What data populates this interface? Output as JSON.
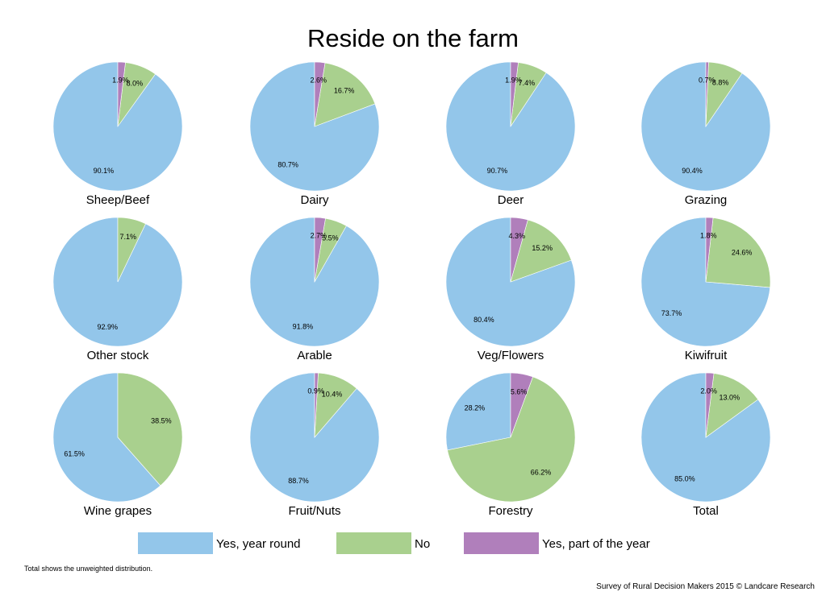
{
  "chart_data": {
    "type": "pie",
    "title": "Reside on the farm",
    "categories": [
      "Yes, year round",
      "No",
      "Yes, part of the year"
    ],
    "colors": [
      "#93c6ea",
      "#a9d08e",
      "#b07fbb"
    ],
    "pies": [
      {
        "name": "Sheep/Beef",
        "values": [
          90.1,
          8.0,
          1.9
        ],
        "labels": [
          "90.1%",
          "8.0%",
          "1.9%"
        ]
      },
      {
        "name": "Dairy",
        "values": [
          80.7,
          16.7,
          2.6
        ],
        "labels": [
          "80.7%",
          "16.7%",
          "2.6%"
        ]
      },
      {
        "name": "Deer",
        "values": [
          90.7,
          7.4,
          1.9
        ],
        "labels": [
          "90.7%",
          "7.4%",
          "1.9%"
        ]
      },
      {
        "name": "Grazing",
        "values": [
          90.4,
          8.8,
          0.7
        ],
        "labels": [
          "90.4%",
          "8.8%",
          "0.7%"
        ]
      },
      {
        "name": "Other stock",
        "values": [
          92.9,
          7.1,
          0
        ],
        "labels": [
          "92.9%",
          "7.1%",
          ""
        ]
      },
      {
        "name": "Arable",
        "values": [
          91.8,
          5.5,
          2.7
        ],
        "labels": [
          "91.8%",
          "5.5%",
          "2.7%"
        ]
      },
      {
        "name": "Veg/Flowers",
        "values": [
          80.4,
          15.2,
          4.3
        ],
        "labels": [
          "80.4%",
          "15.2%",
          "4.3%"
        ]
      },
      {
        "name": "Kiwifruit",
        "values": [
          73.7,
          24.6,
          1.8
        ],
        "labels": [
          "73.7%",
          "24.6%",
          "1.8%"
        ]
      },
      {
        "name": "Wine grapes",
        "values": [
          61.5,
          38.5,
          0
        ],
        "labels": [
          "61.5%",
          "38.5%",
          ""
        ]
      },
      {
        "name": "Fruit/Nuts",
        "values": [
          88.7,
          10.4,
          0.9
        ],
        "labels": [
          "88.7%",
          "10.4%",
          "0.9%"
        ]
      },
      {
        "name": "Forestry",
        "values": [
          28.2,
          66.2,
          5.6
        ],
        "labels": [
          "28.2%",
          "66.2%",
          "5.6%"
        ]
      },
      {
        "name": "Total",
        "values": [
          85.0,
          13.0,
          2.0
        ],
        "labels": [
          "85.0%",
          "13.0%",
          "2.0%"
        ]
      }
    ],
    "legend": {
      "position": "bottom",
      "entries": [
        "Yes, year round",
        "No",
        "Yes, part of the year"
      ]
    }
  },
  "footer": {
    "note": "Total shows the unweighted distribution.",
    "source": "Survey of Rural Decision Makers 2015 © Landcare Research"
  }
}
